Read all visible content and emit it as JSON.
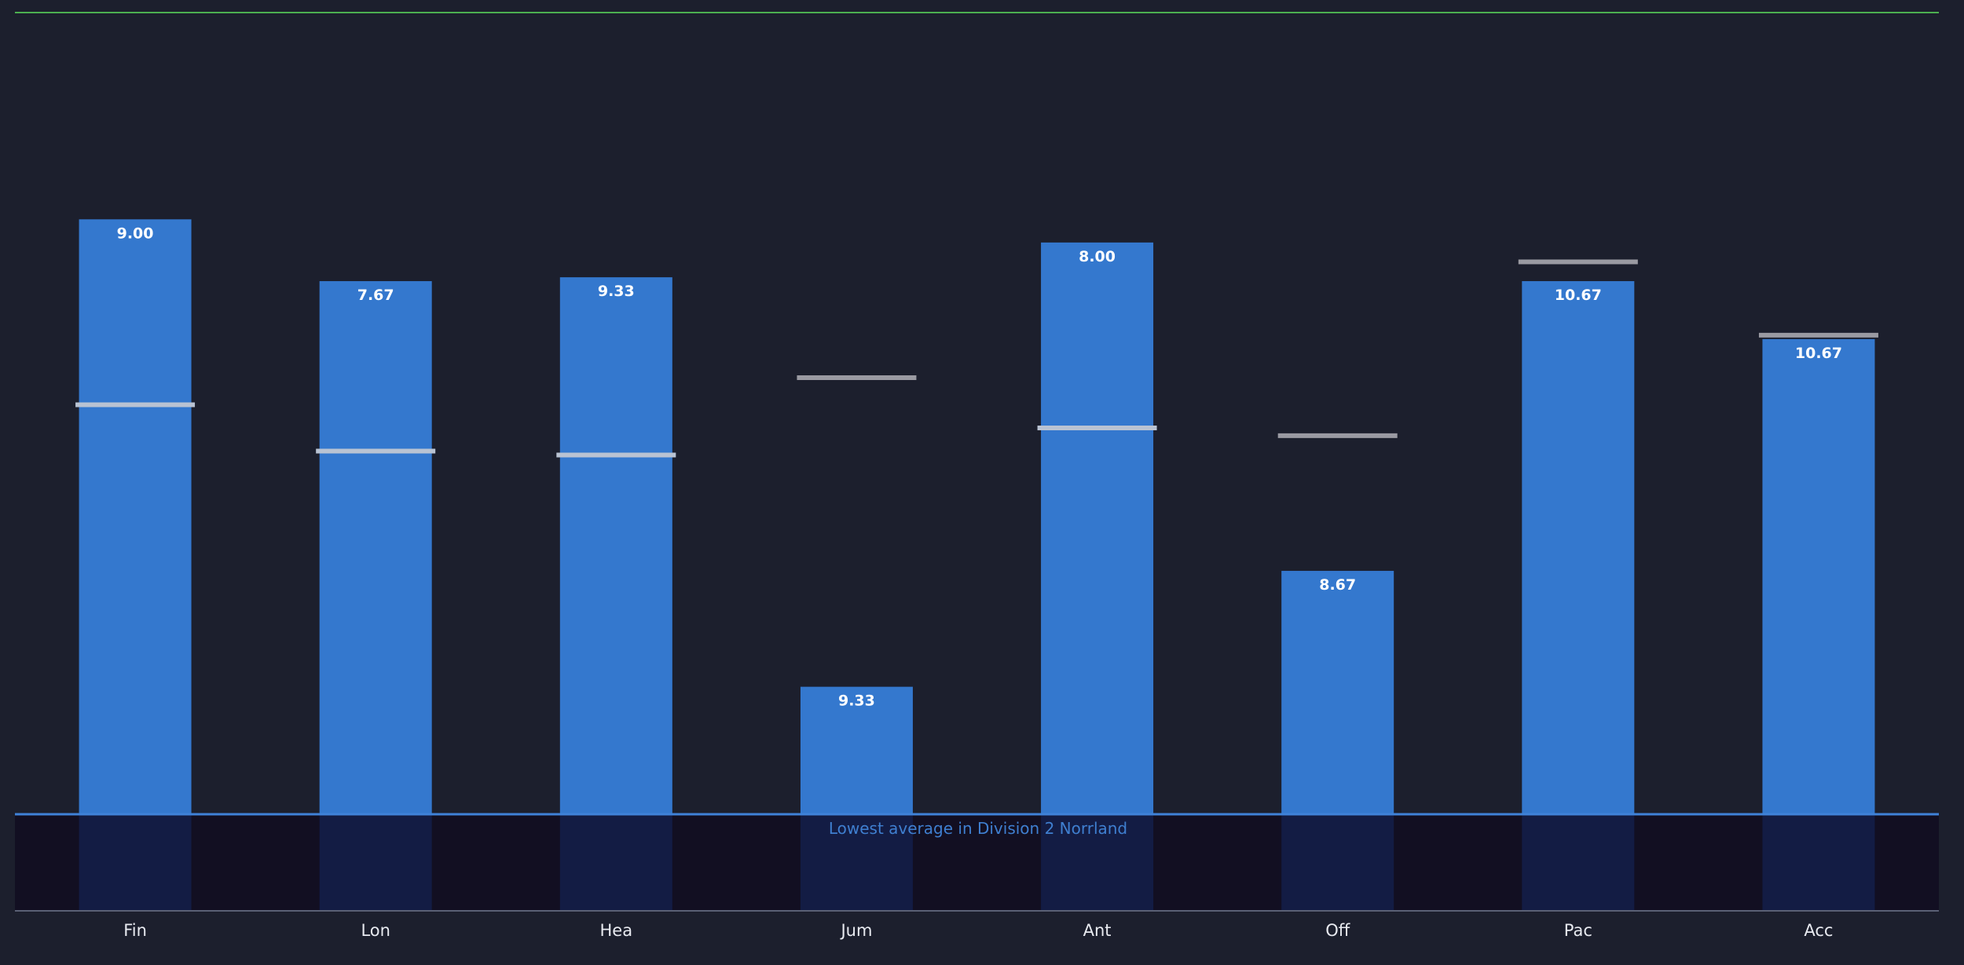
{
  "chart_data": {
    "type": "bar",
    "title": "",
    "xlabel": "",
    "ylabel": "",
    "ylim": [
      0,
      20
    ],
    "grid": false,
    "categories": [
      "Fin",
      "Lon",
      "Hea",
      "Jum",
      "Ant",
      "Off",
      "Pac",
      "Acc"
    ],
    "values": [
      15.4,
      13.8,
      13.9,
      3.3,
      14.8,
      6.3,
      13.8,
      12.3
    ],
    "bar_labels": [
      "9.00",
      "7.67",
      "9.33",
      "9.33",
      "8.00",
      "8.67",
      "10.67",
      "10.67"
    ],
    "reference_values": [
      10.6,
      9.4,
      9.3,
      11.3,
      10.0,
      9.8,
      14.3,
      12.4
    ],
    "threshold": {
      "value": 0,
      "label": "Lowest average in Division 2 Norrland"
    },
    "y_min_visible": -2.45,
    "colors": {
      "background": "#1c1f2d",
      "bar": "#3478ce",
      "bar_below": "#131c44",
      "below_band": "#120f22",
      "threshold_line": "#3f82d8",
      "threshold_text": "#3f7fd0",
      "reference_marker_on_bar": "#b9c3d3",
      "reference_marker_off_bar": "#9a9aa2",
      "top_line": "#4caf50",
      "axis": "#5a6075",
      "label_text": "#ffffff",
      "tick_text": "#e8eaf0"
    }
  }
}
